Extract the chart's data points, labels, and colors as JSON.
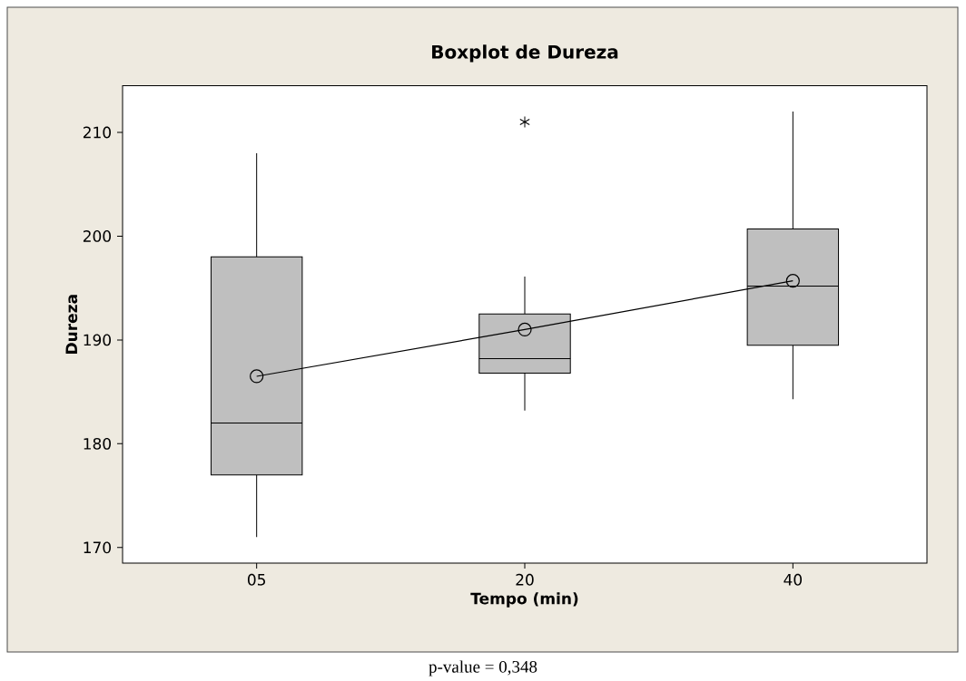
{
  "chart_data": {
    "type": "box",
    "title": "Boxplot de Dureza",
    "xlabel": "Tempo (min)",
    "ylabel": "Dureza",
    "categories": [
      "05",
      "20",
      "40"
    ],
    "boxes": [
      {
        "low": 171,
        "q1": 177,
        "median": 182,
        "q3": 198,
        "high": 208
      },
      {
        "low": 183.2,
        "q1": 186.8,
        "median": 188.2,
        "q3": 192.5,
        "high": 196.1,
        "outliers": [
          211
        ]
      },
      {
        "low": 184.3,
        "q1": 189.5,
        "median": 195.2,
        "q3": 200.7,
        "high": 212
      }
    ],
    "color": "#bfbfbf",
    "series": [
      {
        "type": "line",
        "color": "#000000",
        "values": [
          186.5,
          191.0,
          195.7
        ]
      }
    ],
    "marker": "circle",
    "ylim": [
      168.5,
      214.5
    ],
    "yticks": [
      170,
      180,
      190,
      200,
      210
    ],
    "annotations": [
      "p-value = 0,348"
    ]
  }
}
